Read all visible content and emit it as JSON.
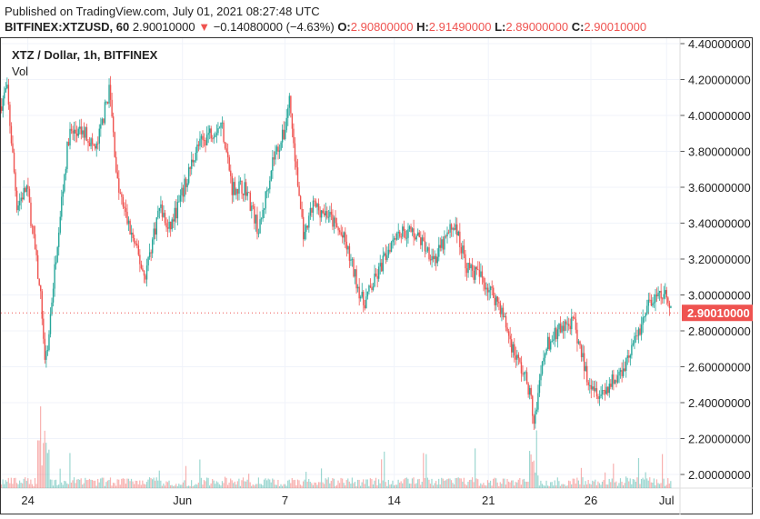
{
  "header": {
    "published": "Published on TradingView.com, July 01, 2021 08:27:48 UTC",
    "symbol": "BITFINEX:XTZUSD, 60",
    "last": "2.90010000",
    "arrow": "▼",
    "change": "−0.14080000 (−4.63%)",
    "o_label": "O:",
    "o": "2.90800000",
    "h_label": "H:",
    "h": "2.91490000",
    "l_label": "L:",
    "l": "2.89000000",
    "c_label": "C:",
    "c": "2.90010000"
  },
  "legend": {
    "title": "XTZ / Dollar, 1h, BITFINEX",
    "vol": "Vol"
  },
  "colors": {
    "up": "#26a69a",
    "down": "#ef5350",
    "grid": "#f0f3fa"
  },
  "chart_data": {
    "type": "candlestick",
    "title": "XTZ / Dollar, 1h, BITFINEX",
    "ylim": [
      1.93,
      4.45
    ],
    "y_ticks": [
      "4.40000000",
      "4.20000000",
      "4.00000000",
      "3.80000000",
      "3.60000000",
      "3.40000000",
      "3.20000000",
      "3.00000000",
      "2.80000000",
      "2.60000000",
      "2.40000000",
      "2.20000000",
      "2.00000000"
    ],
    "y_tick_values": [
      4.4,
      4.2,
      4.0,
      3.8,
      3.6,
      3.4,
      3.2,
      3.0,
      2.8,
      2.6,
      2.4,
      2.2,
      2.0
    ],
    "x_ticks": [
      "24",
      "Jun",
      "7",
      "14",
      "21",
      "26",
      "Jul"
    ],
    "x_tick_days": [
      1.6,
      10.8,
      16.9,
      23.4,
      29.0,
      35.1,
      39.6
    ],
    "xlim_days": [
      0,
      40.4
    ],
    "current_price": 2.9001,
    "current_price_label": "2.90010000",
    "price_path_days": [
      0,
      0.4,
      1.0,
      1.6,
      2.4,
      2.7,
      3.0,
      3.5,
      4.1,
      5.1,
      5.7,
      6.5,
      7.0,
      7.6,
      8.6,
      9.5,
      10.0,
      10.8,
      11.6,
      12.4,
      13.2,
      13.8,
      14.6,
      15.4,
      16.2,
      16.9,
      17.2,
      17.6,
      18.1,
      18.6,
      19.5,
      20.5,
      21.6,
      22.4,
      23.5,
      24.6,
      25.9,
      27.0,
      27.8,
      28.6,
      29.7,
      30.5,
      31.4,
      31.8,
      32.4,
      33.2,
      34.1,
      34.9,
      35.7,
      36.8,
      37.8,
      38.6,
      39.5,
      39.9
    ],
    "price_path": [
      4.05,
      4.15,
      3.5,
      3.6,
      3.0,
      2.6,
      2.9,
      3.4,
      3.9,
      3.9,
      3.8,
      4.15,
      3.6,
      3.4,
      3.1,
      3.5,
      3.35,
      3.55,
      3.8,
      3.9,
      3.95,
      3.6,
      3.6,
      3.35,
      3.75,
      3.9,
      4.1,
      3.7,
      3.3,
      3.5,
      3.45,
      3.3,
      2.95,
      3.1,
      3.35,
      3.35,
      3.2,
      3.4,
      3.15,
      3.1,
      2.95,
      2.7,
      2.5,
      2.3,
      2.7,
      2.8,
      2.85,
      2.55,
      2.45,
      2.55,
      2.75,
      2.95,
      3.0,
      2.9
    ]
  }
}
